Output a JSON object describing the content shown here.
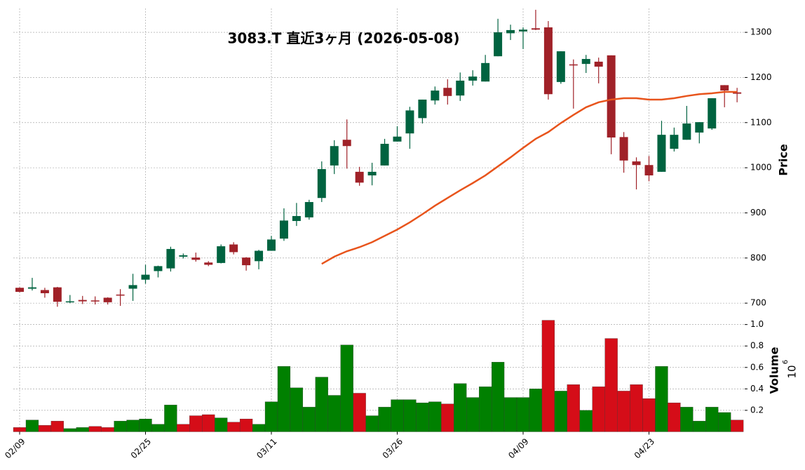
{
  "chart_data": {
    "type": "candlestick",
    "title": "3083.T  直近3ヶ月  (2026-05-08)",
    "categories": [
      "02/09",
      null,
      null,
      null,
      null,
      null,
      null,
      null,
      null,
      null,
      "02/25",
      null,
      null,
      null,
      null,
      null,
      null,
      null,
      null,
      null,
      "03/11",
      null,
      null,
      null,
      null,
      null,
      null,
      null,
      null,
      null,
      "03/26",
      null,
      null,
      null,
      null,
      null,
      null,
      null,
      null,
      null,
      "04/09",
      null,
      null,
      null,
      null,
      null,
      null,
      null,
      null,
      null,
      "04/23",
      null,
      null,
      null,
      null,
      null,
      null,
      null
    ],
    "open": [
      734,
      732,
      729,
      735,
      702,
      707,
      706,
      712,
      719,
      732,
      752,
      771,
      777,
      803,
      801,
      790,
      789,
      830,
      801,
      793,
      816,
      843,
      882,
      890,
      933,
      1005,
      1062,
      991,
      983,
      1005,
      1058,
      1076,
      1110,
      1149,
      1177,
      1160,
      1193,
      1191,
      1247,
      1298,
      1302,
      1309,
      1311,
      1190,
      1229,
      1230,
      1235,
      1249,
      1068,
      1014,
      1006,
      991,
      1042,
      1062,
      1078,
      1087,
      1183,
      1167
    ],
    "high": [
      735,
      756,
      734,
      736,
      718,
      716,
      715,
      713,
      731,
      765,
      785,
      783,
      825,
      810,
      812,
      793,
      830,
      835,
      802,
      818,
      849,
      910,
      922,
      929,
      1014,
      1061,
      1107,
      1002,
      1011,
      1064,
      1092,
      1135,
      1151,
      1180,
      1196,
      1211,
      1216,
      1250,
      1330,
      1317,
      1311,
      1350,
      1325,
      1258,
      1240,
      1250,
      1244,
      1249,
      1079,
      1023,
      1026,
      1104,
      1089,
      1137,
      1101,
      1154,
      1183,
      1177
    ],
    "low": [
      724,
      728,
      712,
      692,
      700,
      698,
      697,
      697,
      694,
      705,
      743,
      757,
      770,
      799,
      792,
      782,
      788,
      808,
      772,
      775,
      816,
      838,
      871,
      885,
      924,
      986,
      998,
      960,
      961,
      1005,
      1058,
      1042,
      1098,
      1140,
      1140,
      1148,
      1182,
      1191,
      1247,
      1283,
      1263,
      1305,
      1151,
      1186,
      1131,
      1210,
      1187,
      1030,
      989,
      952,
      970,
      991,
      1036,
      1062,
      1054,
      1084,
      1134,
      1145
    ],
    "close": [
      725,
      735,
      722,
      703,
      704,
      704,
      704,
      702,
      718,
      740,
      763,
      782,
      820,
      806,
      796,
      785,
      826,
      813,
      784,
      816,
      841,
      883,
      893,
      924,
      997,
      1048,
      1048,
      967,
      991,
      1053,
      1069,
      1127,
      1151,
      1171,
      1159,
      1193,
      1202,
      1232,
      1300,
      1305,
      1306,
      1306,
      1163,
      1258,
      1227,
      1241,
      1224,
      1067,
      1016,
      1006,
      983,
      1073,
      1073,
      1098,
      1101,
      1154,
      1171,
      1164
    ],
    "up_color": "#006340",
    "down_color": "#a02128",
    "moving_average": {
      "color": "#e8541c",
      "values": [
        null,
        null,
        null,
        null,
        null,
        null,
        null,
        null,
        null,
        null,
        null,
        null,
        null,
        null,
        null,
        null,
        null,
        null,
        null,
        null,
        null,
        null,
        null,
        null,
        787,
        803,
        815,
        824,
        835,
        849,
        863,
        879,
        897,
        916,
        933,
        950,
        966,
        983,
        1003,
        1023,
        1044,
        1064,
        1079,
        1099,
        1117,
        1134,
        1145,
        1151,
        1154,
        1154,
        1151,
        1151,
        1154,
        1159,
        1163,
        1165,
        1168,
        1168
      ]
    },
    "ylabel": "Price",
    "ylim": [
      680,
      1353
    ],
    "yticks": [
      700,
      800,
      900,
      1000,
      1100,
      1200,
      1300
    ],
    "volume": [
      0.04,
      0.11,
      0.06,
      0.1,
      0.03,
      0.04,
      0.05,
      0.04,
      0.1,
      0.11,
      0.12,
      0.07,
      0.25,
      0.07,
      0.15,
      0.16,
      0.13,
      0.09,
      0.12,
      0.07,
      0.28,
      0.61,
      0.41,
      0.23,
      0.51,
      0.34,
      0.81,
      0.36,
      0.15,
      0.23,
      0.3,
      0.3,
      0.27,
      0.28,
      0.26,
      0.45,
      0.32,
      0.42,
      0.65,
      0.32,
      0.32,
      0.4,
      1.04,
      0.38,
      0.44,
      0.2,
      0.42,
      0.87,
      0.38,
      0.44,
      0.31,
      0.61,
      0.27,
      0.23,
      0.1,
      0.23,
      0.18,
      0.11
    ],
    "volume_colors": [
      "#d50d18",
      "#008000",
      "#d50d18",
      "#d50d18",
      "#008000",
      "#008000",
      "#d50d18",
      "#d50d18",
      "#008000",
      "#008000",
      "#008000",
      "#008000",
      "#008000",
      "#d50d18",
      "#d50d18",
      "#d50d18",
      "#008000",
      "#d50d18",
      "#d50d18",
      "#008000",
      "#008000",
      "#008000",
      "#008000",
      "#008000",
      "#008000",
      "#008000",
      "#008000",
      "#d50d18",
      "#008000",
      "#008000",
      "#008000",
      "#008000",
      "#008000",
      "#008000",
      "#d50d18",
      "#008000",
      "#008000",
      "#008000",
      "#008000",
      "#008000",
      "#008000",
      "#008000",
      "#d50d18",
      "#008000",
      "#d50d18",
      "#008000",
      "#d50d18",
      "#d50d18",
      "#d50d18",
      "#d50d18",
      "#d50d18",
      "#008000",
      "#d50d18",
      "#008000",
      "#008000",
      "#008000",
      "#008000",
      "#d50d18"
    ],
    "volume_label": "Volume",
    "volume_scale": {
      "base": "10",
      "power": "6"
    },
    "volume_ylim": [
      0,
      1.05
    ],
    "volume_yticks": [
      0.2,
      0.4,
      0.6,
      0.8,
      {
        "value": 1,
        "label": "1.0"
      }
    ],
    "grid": true
  }
}
